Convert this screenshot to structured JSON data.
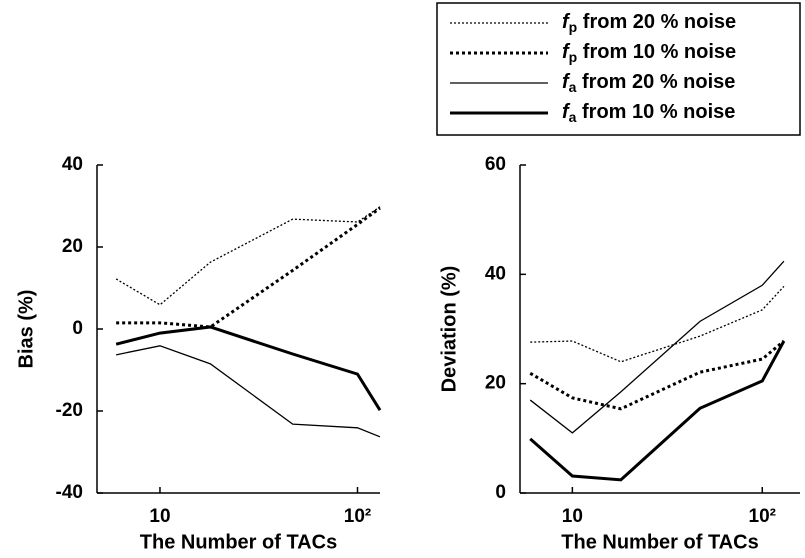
{
  "chart_data": [
    {
      "type": "line",
      "x_label": "The Number of TACs",
      "y_label": "Bias (%)",
      "log_x": true,
      "x": [
        6,
        10,
        18,
        47,
        100,
        130
      ],
      "xlim": [
        4.8,
        130
      ],
      "xticks": [
        10,
        {
          "value": 100,
          "label": "10²"
        }
      ],
      "ylim": [
        -40,
        40
      ],
      "yticks": [
        -40,
        -20,
        0,
        20,
        40
      ],
      "series": [
        {
          "name": "fp from 20 % noise",
          "color": "#000000",
          "style": "dotted",
          "width": 1.3,
          "values": [
            12.2,
            5.9,
            16.3,
            26.8,
            26.1,
            29.8
          ]
        },
        {
          "name": "fp from 10 % noise",
          "color": "#000000",
          "style": "dotted",
          "width": 3,
          "values": [
            1.5,
            1.5,
            0.5,
            14.3,
            25.5,
            29.5
          ]
        },
        {
          "name": "fa from 20 % noise",
          "color": "#000000",
          "style": "solid",
          "width": 1.3,
          "values": [
            -6.3,
            -4.1,
            -8.5,
            -23.2,
            -24.1,
            -26.3
          ]
        },
        {
          "name": "fa from 10 % noise",
          "color": "#000000",
          "style": "solid",
          "width": 3,
          "values": [
            -3.7,
            -1,
            0.5,
            -6.1,
            -11,
            -19.8
          ]
        }
      ]
    },
    {
      "type": "line",
      "x_label": "The Number of TACs",
      "y_label": "Deviation (%)",
      "log_x": true,
      "x": [
        6,
        10,
        18,
        47,
        100,
        130
      ],
      "xlim": [
        5.3,
        158
      ],
      "xticks": [
        10,
        {
          "value": 100,
          "label": "10²"
        }
      ],
      "ylim": [
        0,
        60
      ],
      "yticks": [
        0,
        20,
        40,
        60
      ],
      "series": [
        {
          "color": "#000000",
          "style": "dotted",
          "width": 1.3,
          "values": [
            27.6,
            27.8,
            24,
            28.7,
            33.5,
            37.8
          ]
        },
        {
          "color": "#000000",
          "style": "dotted",
          "width": 3,
          "values": [
            21.9,
            17.4,
            15.4,
            22.1,
            24.5,
            27.8
          ]
        },
        {
          "color": "#000000",
          "style": "solid",
          "width": 1.3,
          "values": [
            17,
            11,
            18.5,
            31.4,
            38,
            42.4
          ]
        },
        {
          "color": "#000000",
          "style": "solid",
          "width": 3,
          "values": [
            9.9,
            3.1,
            2.4,
            15.5,
            20.5,
            27.8
          ]
        }
      ]
    }
  ]
}
